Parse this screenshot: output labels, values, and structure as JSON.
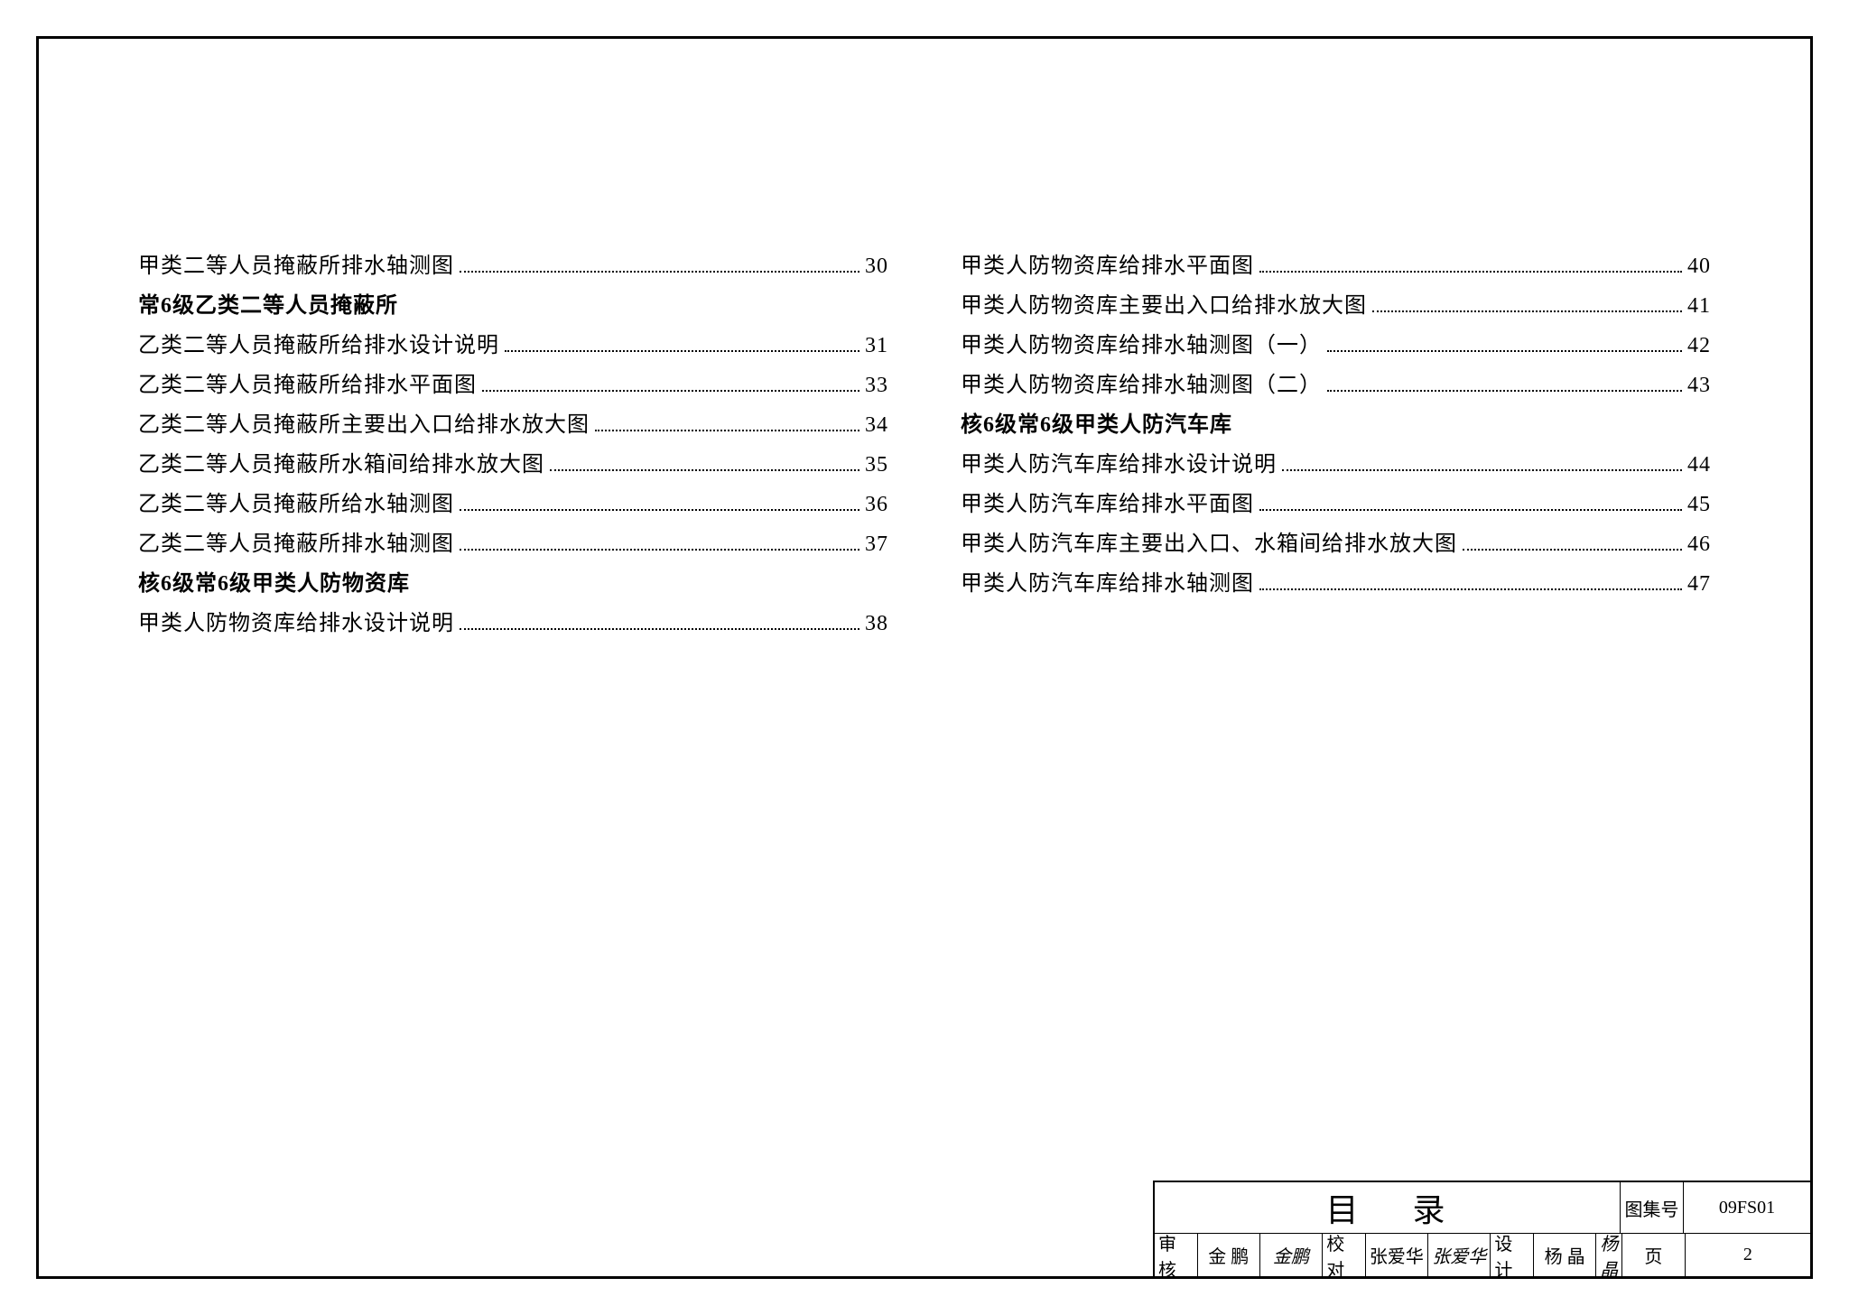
{
  "toc": {
    "left": [
      {
        "text": "甲类二等人员掩蔽所排水轴测图",
        "page": "30",
        "bold": false
      },
      {
        "text": "常6级乙类二等人员掩蔽所",
        "page": "",
        "bold": true
      },
      {
        "text": "乙类二等人员掩蔽所给排水设计说明",
        "page": "31",
        "bold": false
      },
      {
        "text": "乙类二等人员掩蔽所给排水平面图",
        "page": "33",
        "bold": false
      },
      {
        "text": "乙类二等人员掩蔽所主要出入口给排水放大图",
        "page": "34",
        "bold": false
      },
      {
        "text": "乙类二等人员掩蔽所水箱间给排水放大图",
        "page": "35",
        "bold": false
      },
      {
        "text": "乙类二等人员掩蔽所给水轴测图",
        "page": "36",
        "bold": false
      },
      {
        "text": "乙类二等人员掩蔽所排水轴测图",
        "page": "37",
        "bold": false
      },
      {
        "text": "核6级常6级甲类人防物资库",
        "page": "",
        "bold": true
      },
      {
        "text": "甲类人防物资库给排水设计说明",
        "page": "38",
        "bold": false
      }
    ],
    "right": [
      {
        "text": "甲类人防物资库给排水平面图",
        "page": "40",
        "bold": false
      },
      {
        "text": "甲类人防物资库主要出入口给排水放大图",
        "page": "41",
        "bold": false
      },
      {
        "text": "甲类人防物资库给排水轴测图（一）",
        "page": "42",
        "bold": false
      },
      {
        "text": "甲类人防物资库给排水轴测图（二）",
        "page": "43",
        "bold": false
      },
      {
        "text": "核6级常6级甲类人防汽车库",
        "page": "",
        "bold": true
      },
      {
        "text": "甲类人防汽车库给排水设计说明",
        "page": "44",
        "bold": false
      },
      {
        "text": "甲类人防汽车库给排水平面图",
        "page": "45",
        "bold": false
      },
      {
        "text": "甲类人防汽车库主要出入口、水箱间给排水放大图",
        "page": "46",
        "bold": false
      },
      {
        "text": "甲类人防汽车库给排水轴测图",
        "page": "47",
        "bold": false
      }
    ]
  },
  "titleblock": {
    "title": "目录",
    "drawing_set_label": "图集号",
    "drawing_set_no": "09FS01",
    "review_label": "审核",
    "reviewer": "金  鹏",
    "reviewer_sig": "金鹏",
    "check_label": "校对",
    "checker": "张爱华",
    "checker_sig": "张爱华",
    "design_label": "设计",
    "designer": "杨  晶",
    "designer_sig": "杨晶",
    "page_label": "页",
    "page_no": "2"
  }
}
